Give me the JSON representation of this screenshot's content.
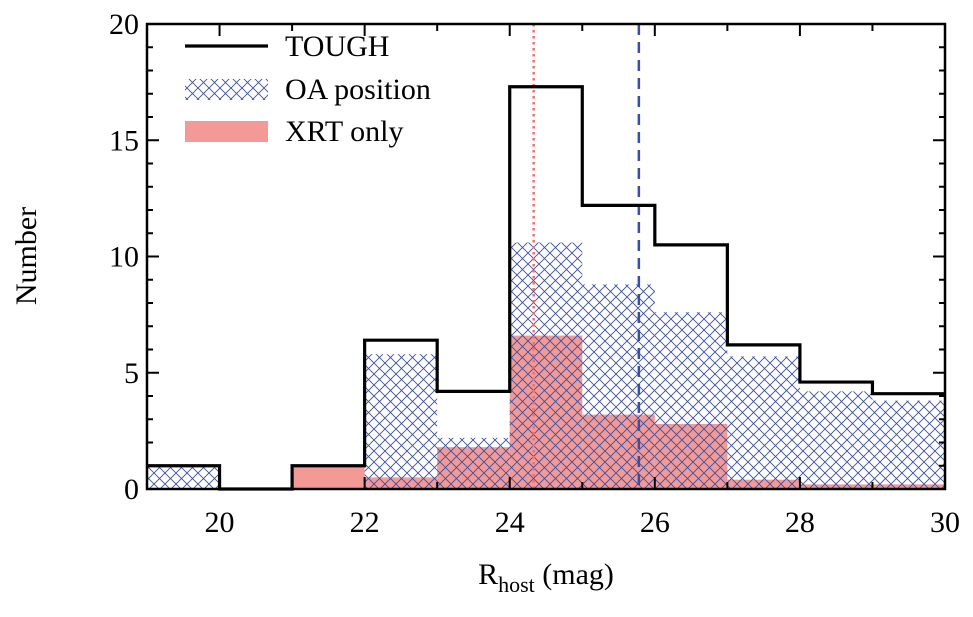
{
  "chart_data": {
    "type": "bar",
    "title": "",
    "xlabel": "R",
    "xlabel_sub": "host",
    "xlabel_suffix": " (mag)",
    "ylabel": "Number",
    "xlim": [
      19,
      30
    ],
    "ylim": [
      0,
      20
    ],
    "x_ticks": [
      "20",
      "22",
      "24",
      "26",
      "28",
      "30"
    ],
    "y_ticks": [
      "0",
      "5",
      "10",
      "15",
      "20"
    ],
    "bin_edges": [
      19,
      20,
      21,
      22,
      23,
      24,
      25,
      26,
      27,
      28,
      29,
      30
    ],
    "series": [
      {
        "name": "TOUGH",
        "style": "step",
        "color": "#000000",
        "values": [
          1.0,
          0.0,
          1.0,
          6.4,
          4.2,
          17.3,
          12.2,
          10.5,
          6.2,
          4.6,
          4.1
        ]
      },
      {
        "name": "OA position",
        "style": "hatch",
        "color": "#3a4fa0",
        "values": [
          1.0,
          0.0,
          0.0,
          5.8,
          2.2,
          10.6,
          8.8,
          7.6,
          5.7,
          4.2,
          3.8
        ]
      },
      {
        "name": "XRT only",
        "style": "fill",
        "color": "#f49a96",
        "values": [
          0.0,
          0.0,
          1.0,
          0.5,
          1.8,
          6.6,
          3.2,
          2.8,
          0.4,
          0.2,
          0.2
        ]
      }
    ],
    "vlines": [
      {
        "x": 24.33,
        "color": "#f07070",
        "style": "dotted"
      },
      {
        "x": 25.78,
        "color": "#3a4fa0",
        "style": "dashed"
      }
    ],
    "legend_position": "top-left"
  }
}
